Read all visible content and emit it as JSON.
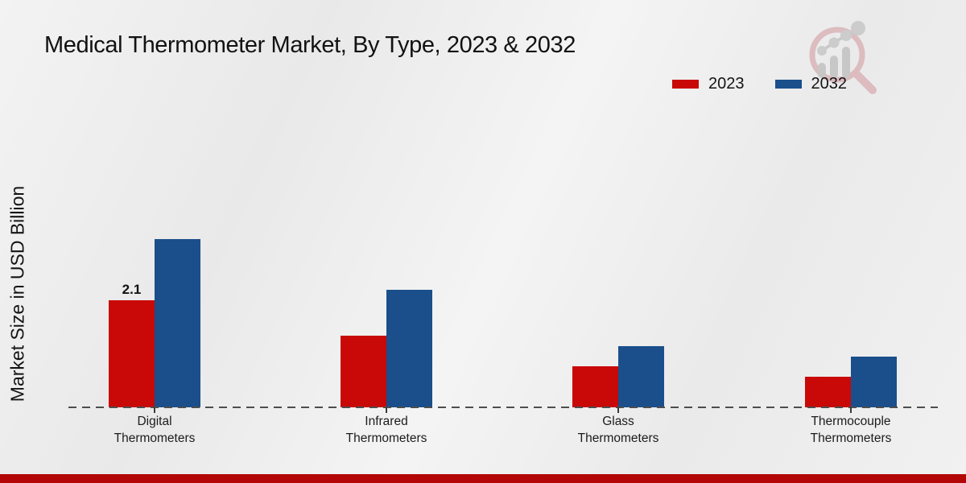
{
  "title": "Medical Thermometer Market, By Type, 2023 & 2032",
  "ylabel": "Market Size in USD Billion",
  "legend": [
    {
      "label": "2023",
      "color": "#c90808"
    },
    {
      "label": "2032",
      "color": "#1a4f8b"
    }
  ],
  "colors": {
    "series_2023": "#c90808",
    "series_2032": "#1a4f8b",
    "footer_band": "#b30707",
    "baseline": "#4d4d4d",
    "background": "#eeeeee"
  },
  "logo": {
    "icon": "magnifier-growth-chart-logo"
  },
  "footer": {},
  "chart_data": {
    "type": "bar",
    "title": "Medical Thermometer Market, By Type, 2023 & 2032",
    "xlabel": "",
    "ylabel": "Market Size in USD Billion",
    "categories": [
      "Digital Thermometers",
      "Infrared Thermometers",
      "Glass Thermometers",
      "Thermocouple Thermometers"
    ],
    "category_lines": [
      [
        "Digital",
        "Thermometers"
      ],
      [
        "Infrared",
        "Thermometers"
      ],
      [
        "Glass",
        "Thermometers"
      ],
      [
        "Thermocouple",
        "Thermometers"
      ]
    ],
    "series": [
      {
        "name": "2023",
        "color": "#c90808",
        "values": [
          2.1,
          1.4,
          0.8,
          0.6
        ]
      },
      {
        "name": "2032",
        "color": "#1a4f8b",
        "values": [
          3.3,
          2.3,
          1.2,
          1.0
        ]
      }
    ],
    "annotations": [
      {
        "series": "2023",
        "category": "Digital Thermometers",
        "text": "2.1"
      }
    ],
    "unit": "USD Billion",
    "ylim": [
      0,
      3.5
    ],
    "grid": false,
    "y_axis_ticks_visible": false,
    "baseline_style": "dashed",
    "legend_position": "top-right"
  }
}
